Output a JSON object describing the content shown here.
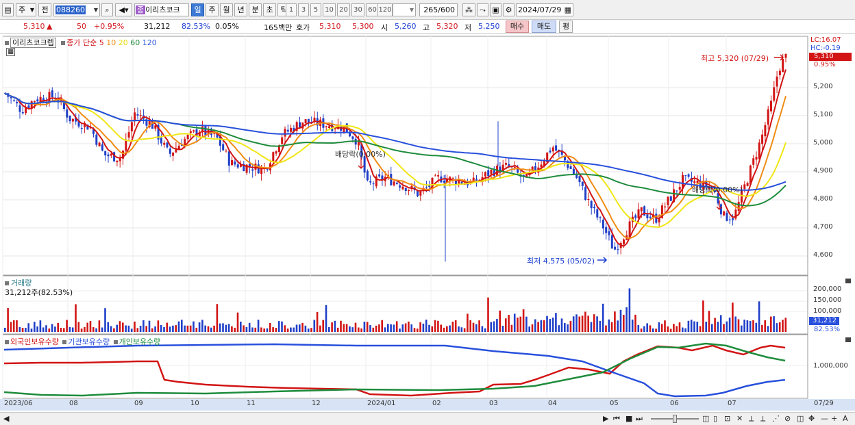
{
  "toolbar": {
    "market": "주",
    "prefix": "전",
    "code": "088260",
    "stock_name": "이리츠코크",
    "stock_badge": "종",
    "periods": [
      "일",
      "주",
      "월",
      "년",
      "분",
      "초",
      "틱"
    ],
    "selected_period": "일",
    "intervals": [
      "1",
      "3",
      "5",
      "10",
      "20",
      "30",
      "60",
      "120"
    ],
    "count": "265",
    "count_total": "/600",
    "date": "2024/07/29"
  },
  "info": {
    "price": "5,310",
    "change_arrow": "▲",
    "change": "50",
    "change_pct": "+0.95%",
    "volume": "31,212",
    "volume_ratio": "82.53%",
    "turnover_pct": "0.05%",
    "amount": "165백만",
    "quote_label": "호가",
    "ask": "5,310",
    "bid": "5,300",
    "open_label": "시",
    "open": "5,260",
    "high_label": "고",
    "high": "5,320",
    "low_label": "저",
    "low": "5,250",
    "buy_button": "매수",
    "sell_button": "매도",
    "avg_button": "평"
  },
  "price_panel": {
    "title": "이리츠코크렙",
    "ma_label": "종가 단순",
    "ma_periods": [
      "5",
      "10",
      "20",
      "60",
      "120"
    ],
    "ma_colors": [
      "#d21414",
      "#f08c14",
      "#f0e614",
      "#1e8c3c",
      "#2850dc"
    ],
    "lc": "LC:16.07",
    "hc": "HC:-0.19",
    "last_price_tag": "5,310",
    "last_pct": "0.95%",
    "y_ticks": [
      "5,200",
      "5,100",
      "5,000",
      "4,900",
      "4,800",
      "4,700",
      "4,600"
    ],
    "high_annotation": "최고 5,320 (07/29)",
    "low_annotation": "최저 4,575 (05/02)",
    "dividend_label_1": "배당락(0.00%)",
    "dividend_label_2": "배당락(0.00%)"
  },
  "volume_panel": {
    "title": "거래량",
    "current": "31,212주(82.53%)",
    "y_ticks": [
      "200,000",
      "150,000",
      "100,000"
    ],
    "last_tag": "31,212",
    "last_pct": "82.53%"
  },
  "holdings_panel": {
    "series": [
      "외국인보유수량",
      "기관보유수량",
      "개인보유수량"
    ],
    "colors": [
      "#d21414",
      "#2850dc",
      "#1e8c3c"
    ],
    "y_tick": "1,000,000"
  },
  "x_axis": {
    "labels": [
      "2023/06",
      "08",
      "09",
      "10",
      "11",
      "12",
      "2024/01",
      "02",
      "03",
      "04",
      "05",
      "06",
      "07"
    ],
    "last_date": "07/29"
  }
}
